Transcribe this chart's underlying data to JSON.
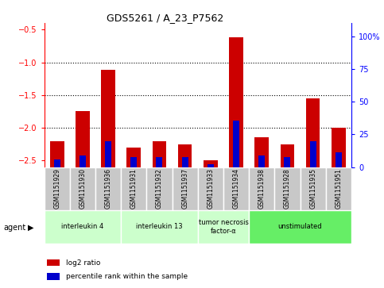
{
  "title": "GDS5261 / A_23_P7562",
  "samples": [
    "GSM1151929",
    "GSM1151930",
    "GSM1151936",
    "GSM1151931",
    "GSM1151932",
    "GSM1151937",
    "GSM1151933",
    "GSM1151934",
    "GSM1151938",
    "GSM1151928",
    "GSM1151935",
    "GSM1151951"
  ],
  "log2_ratio": [
    -2.2,
    -1.75,
    -1.12,
    -2.3,
    -2.2,
    -2.25,
    -2.5,
    -0.62,
    -2.15,
    -2.25,
    -1.55,
    -2.0
  ],
  "percentile_rank": [
    5,
    8,
    18,
    7,
    7,
    7,
    2,
    32,
    8,
    7,
    18,
    10
  ],
  "groups": [
    {
      "label": "interleukin 4",
      "start": 0,
      "end": 3,
      "color": "#ccffcc"
    },
    {
      "label": "interleukin 13",
      "start": 3,
      "end": 6,
      "color": "#ccffcc"
    },
    {
      "label": "tumor necrosis\nfactor-α",
      "start": 6,
      "end": 8,
      "color": "#ccffcc"
    },
    {
      "label": "unstimulated",
      "start": 8,
      "end": 12,
      "color": "#66ee66"
    }
  ],
  "ylim_left": [
    -2.6,
    -0.4
  ],
  "ylim_right": [
    0,
    110
  ],
  "yticks_left": [
    -2.5,
    -2.0,
    -1.5,
    -1.0,
    -0.5
  ],
  "yticks_right": [
    0,
    25,
    50,
    75,
    100
  ],
  "ytick_labels_right": [
    "0",
    "25",
    "50",
    "75",
    "100%"
  ],
  "bar_color_red": "#cc0000",
  "bar_color_blue": "#0000cc",
  "bar_width": 0.55,
  "blue_bar_width": 0.25,
  "bg_labels": "#c8c8c8",
  "legend_items": [
    {
      "color": "#cc0000",
      "label": "log2 ratio"
    },
    {
      "color": "#0000cc",
      "label": "percentile rank within the sample"
    }
  ]
}
